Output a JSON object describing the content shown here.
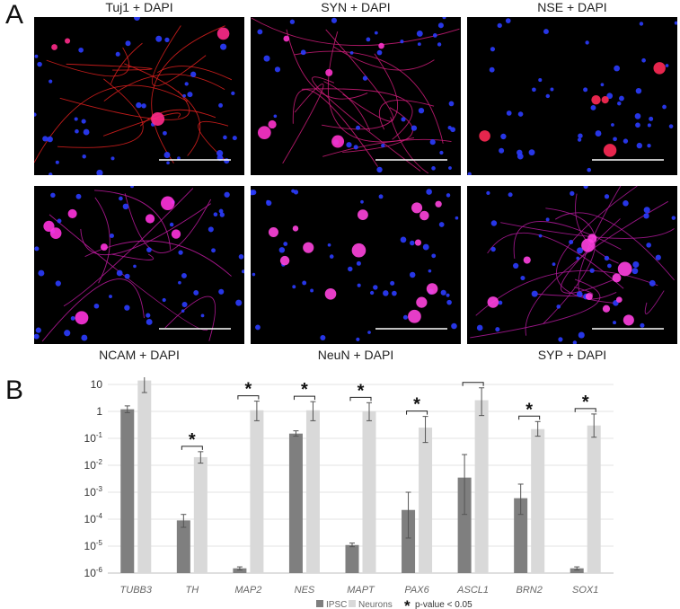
{
  "panel_a": {
    "letter": "A",
    "images": [
      {
        "label": "Tuj1 + DAPI"
      },
      {
        "label": "SYN + DAPI"
      },
      {
        "label": "NSE + DAPI"
      },
      {
        "label": "NCAM + DAPI"
      },
      {
        "label": "NeuN + DAPI"
      },
      {
        "label": "SYP + DAPI"
      }
    ]
  },
  "panel_b": {
    "letter": "B"
  },
  "chart_data": {
    "type": "bar",
    "yscale": "log",
    "ylim": [
      1e-06,
      10
    ],
    "yticks": [
      {
        "base": "10",
        "exp": "-6",
        "value": 1e-06
      },
      {
        "base": "10",
        "exp": "-5",
        "value": 1e-05
      },
      {
        "base": "10",
        "exp": "-4",
        "value": 0.0001
      },
      {
        "base": "10",
        "exp": "-3",
        "value": 0.001
      },
      {
        "base": "10",
        "exp": "-2",
        "value": 0.01
      },
      {
        "base": "10",
        "exp": "-1",
        "value": 0.1
      },
      {
        "base": "1",
        "exp": "",
        "value": 1
      },
      {
        "base": "10",
        "exp": "",
        "value": 10
      }
    ],
    "grid": true,
    "legend_position": "bottom",
    "categories": [
      "TUBB3",
      "TH",
      "MAP2",
      "NES",
      "MAPT",
      "PAX6",
      "ASCL1",
      "BRN2",
      "SOX1"
    ],
    "series": [
      {
        "name": "IPSC",
        "color": "#7f7f7f",
        "values": [
          1.2,
          9e-05,
          1.5e-06,
          0.15,
          1.1e-05,
          0.00022,
          0.0035,
          0.0006,
          1.5e-06
        ],
        "err_low": [
          0.9,
          5e-05,
          1.3e-06,
          0.12,
          9.5e-06,
          2e-05,
          0.00015,
          0.00015,
          1.3e-06
        ],
        "err_high": [
          1.6,
          0.00015,
          1.7e-06,
          0.19,
          1.3e-05,
          0.001,
          0.025,
          0.002,
          1.7e-06
        ]
      },
      {
        "name": "Neurons",
        "color": "#d9d9d9",
        "values": [
          14,
          0.02,
          1.1,
          1.1,
          1.0,
          0.25,
          2.6,
          0.22,
          0.3
        ],
        "err_low": [
          5,
          0.012,
          0.45,
          0.45,
          0.45,
          0.07,
          0.7,
          0.12,
          0.11
        ],
        "err_high": [
          35,
          0.032,
          2.4,
          2.3,
          2.1,
          0.65,
          7.5,
          0.42,
          0.8
        ]
      }
    ],
    "significance": {
      "marker": "*",
      "categories": [
        "TUBB3",
        "TH",
        "MAP2",
        "NES",
        "MAPT",
        "PAX6",
        "ASCL1",
        "BRN2",
        "SOX1"
      ]
    },
    "legend": {
      "items": [
        "IPSC",
        "Neurons"
      ],
      "sig_label": "p-value < 0.05",
      "sig_marker": "*"
    }
  }
}
